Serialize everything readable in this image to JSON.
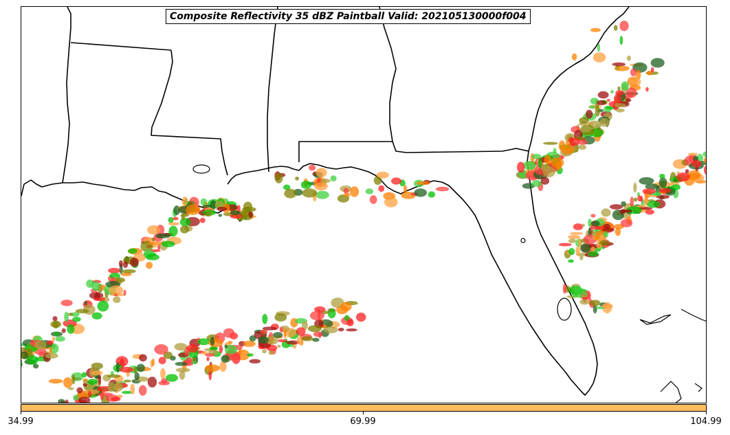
{
  "title": "Composite Reflectivity 35 dBZ Paintball Valid: 202105130000f004",
  "colorbar": {
    "color": "#ffbe5c",
    "tick_labels": [
      "34.99",
      "69.99",
      "104.99"
    ]
  },
  "map": {
    "region": "US Gulf Coast and Florida",
    "boundary_color": "#000000",
    "paintball_colors": [
      "#00c000",
      "#808000",
      "#ff8000",
      "#ff2020",
      "#a01010",
      "#ff4040",
      "#40d040",
      "#b0a040",
      "#ffa040",
      "#206020"
    ]
  }
}
